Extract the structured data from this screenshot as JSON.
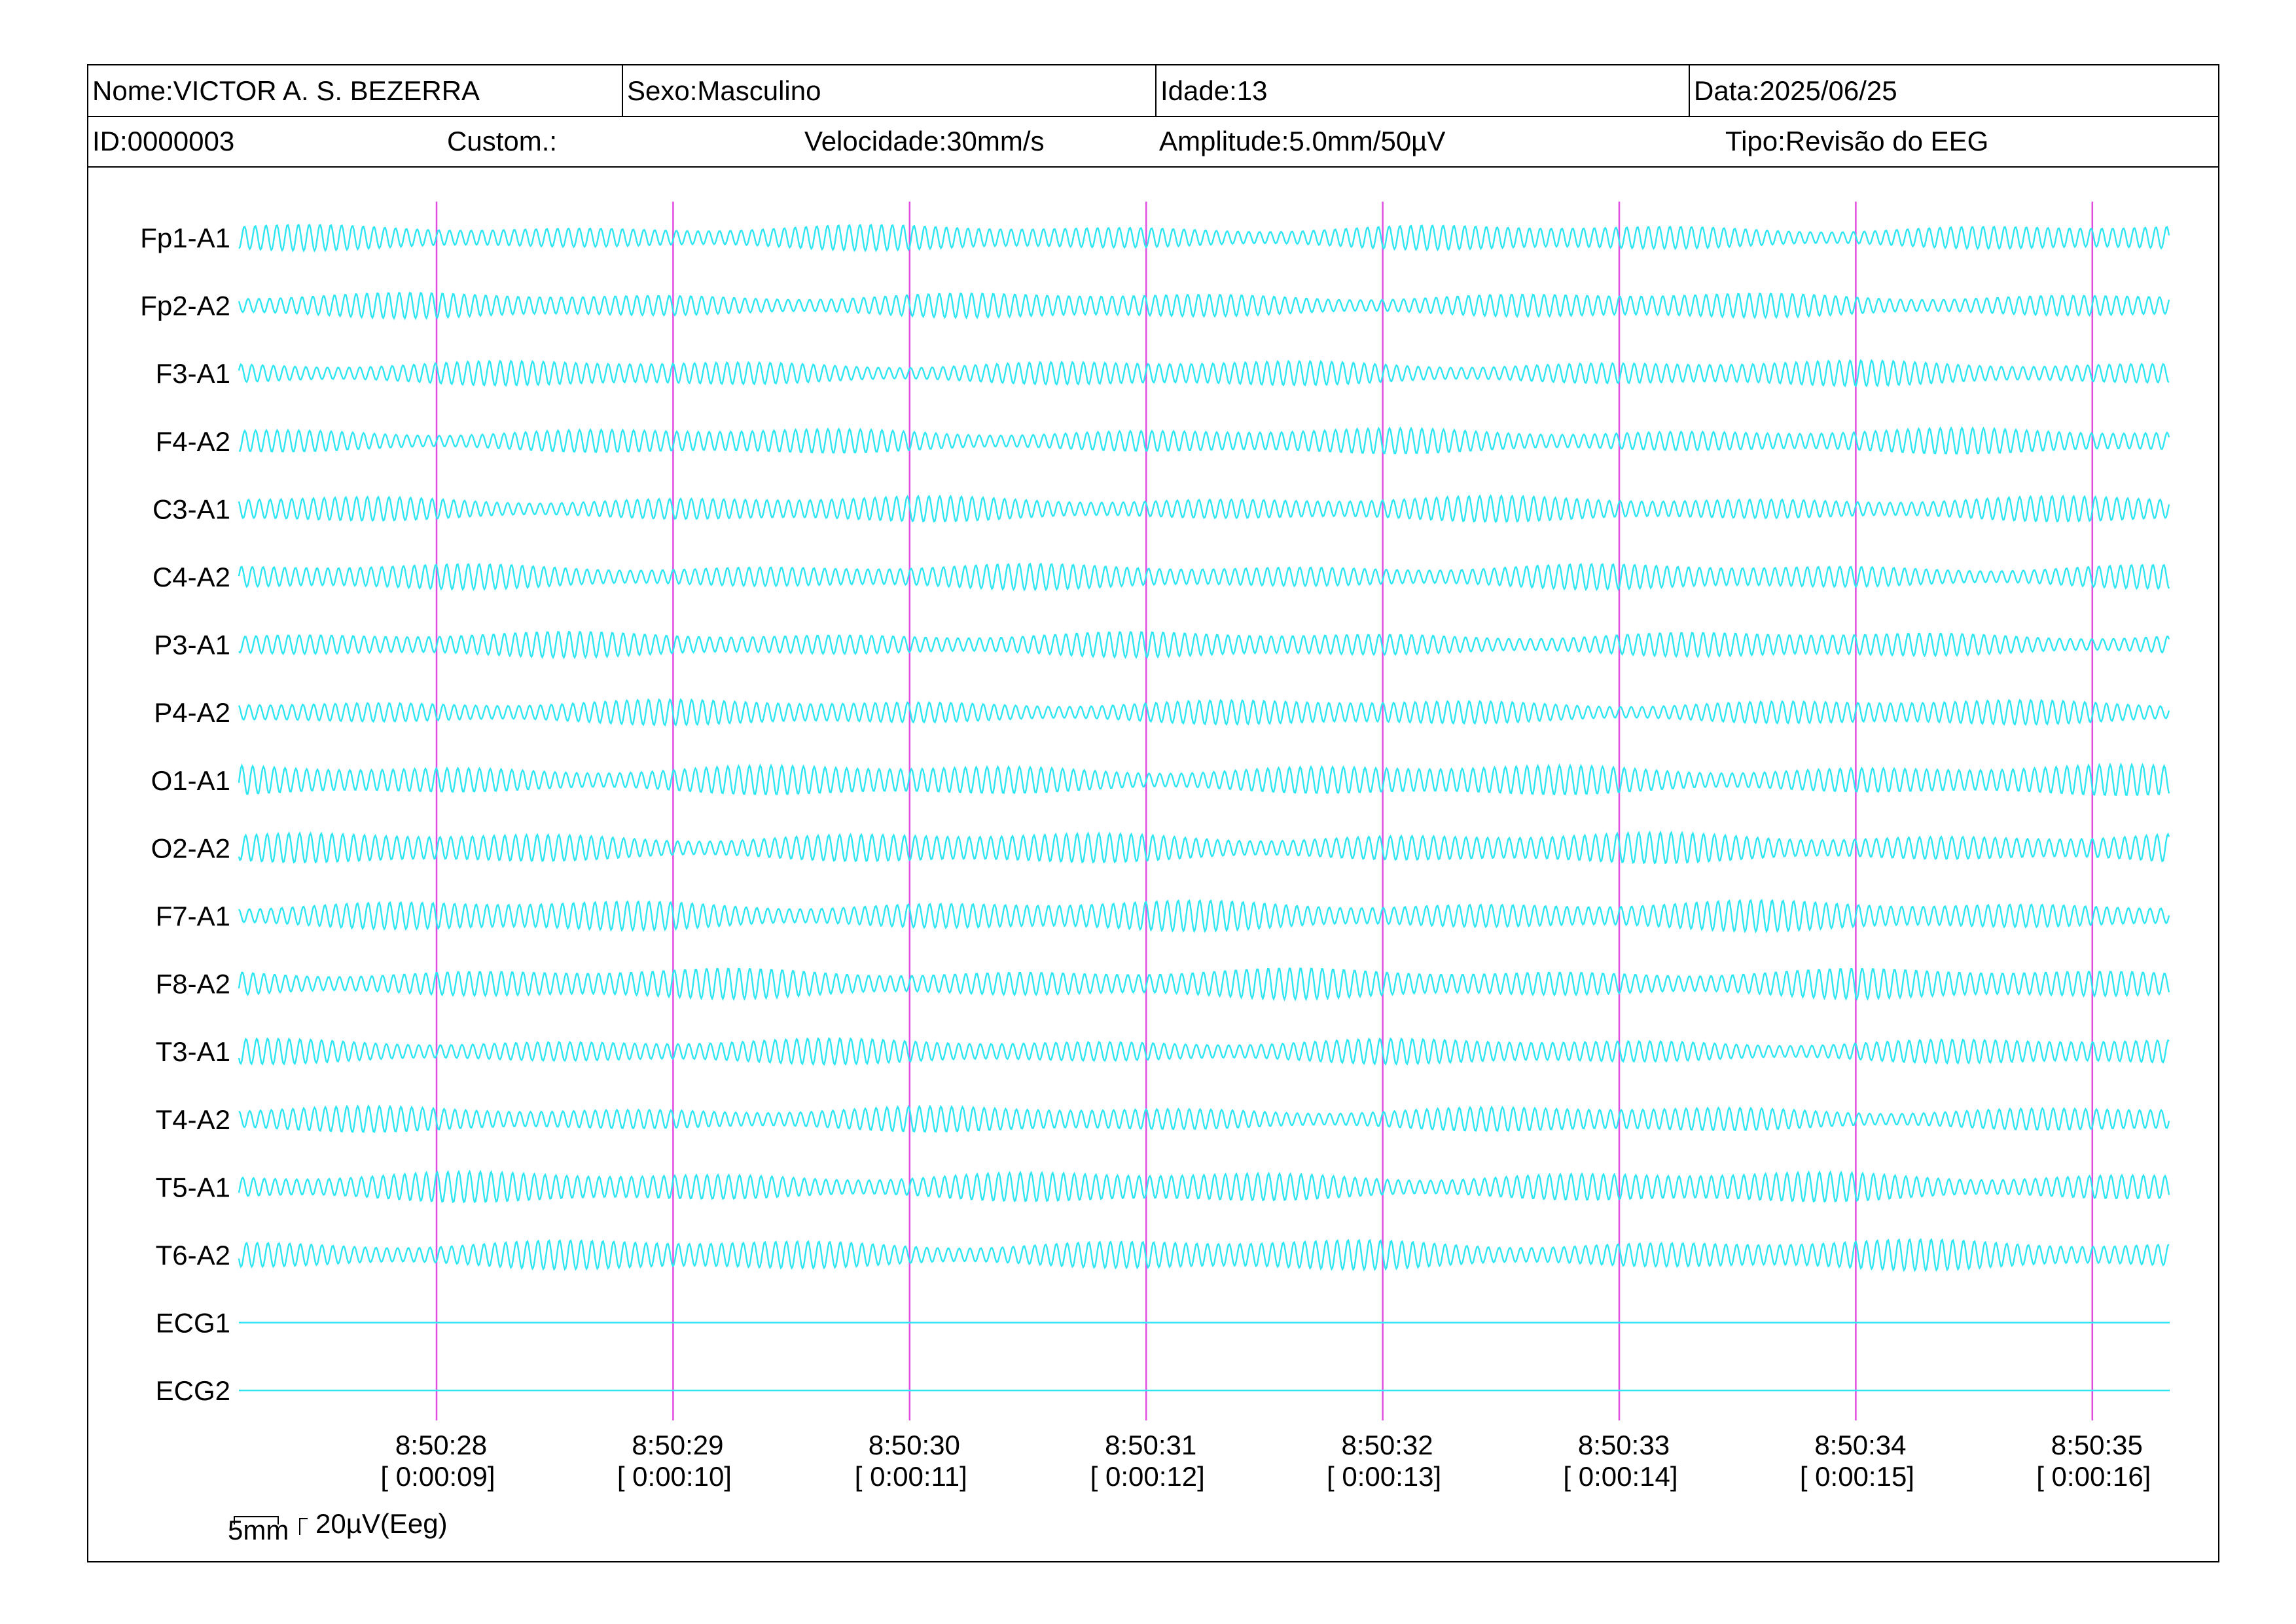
{
  "header": {
    "nome": "Nome:VICTOR A. S. BEZERRA",
    "sexo": "Sexo:Masculino",
    "idade": "Idade:13",
    "data": "Data:2025/06/25",
    "id": "ID:0000003",
    "custom": "Custom.:",
    "velocidade": "Velocidade:30mm/s",
    "amplitude": "Amplitude:5.0mm/50µV",
    "tipo": "Tipo:Revisão do EEG"
  },
  "scale": {
    "time_bar": "5mm",
    "amp_bar": "20µV(Eeg)"
  },
  "colors": {
    "trace": "#2ee6f2",
    "marker": "#e04ee0",
    "border": "#000000"
  },
  "chart_data": {
    "type": "line",
    "channels": [
      "Fp1-A1",
      "Fp2-A2",
      "F3-A1",
      "F4-A2",
      "C3-A1",
      "C4-A2",
      "P3-A1",
      "P4-A2",
      "O1-A1",
      "O2-A2",
      "F7-A1",
      "F8-A2",
      "T3-A1",
      "T4-A2",
      "T5-A1",
      "T6-A2",
      "ECG1",
      "ECG2"
    ],
    "time_markers": [
      {
        "clock": "8:50:28",
        "elapsed": "[ 0:00:09]"
      },
      {
        "clock": "8:50:29",
        "elapsed": "[ 0:00:10]"
      },
      {
        "clock": "8:50:30",
        "elapsed": "[ 0:00:11]"
      },
      {
        "clock": "8:50:31",
        "elapsed": "[ 0:00:12]"
      },
      {
        "clock": "8:50:32",
        "elapsed": "[ 0:00:13]"
      },
      {
        "clock": "8:50:33",
        "elapsed": "[ 0:00:14]"
      },
      {
        "clock": "8:50:34",
        "elapsed": "[ 0:00:15]"
      },
      {
        "clock": "8:50:35",
        "elapsed": "[ 0:00:16]"
      }
    ],
    "grid": false
  }
}
